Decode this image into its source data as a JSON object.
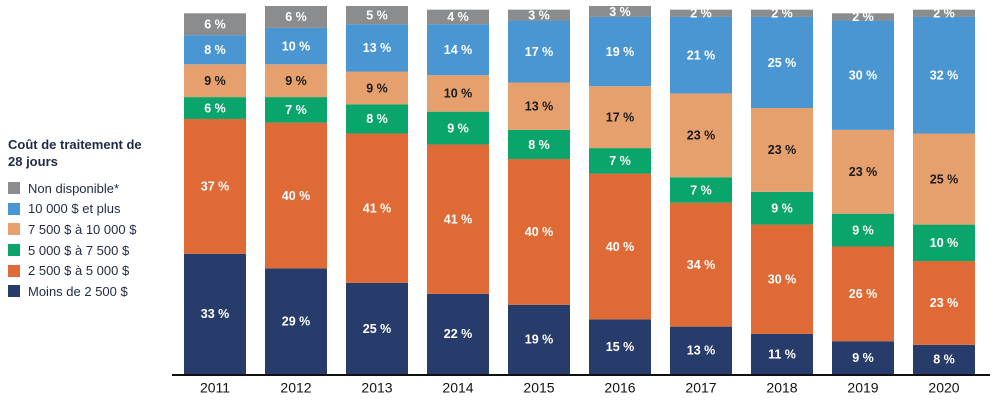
{
  "chart_data": {
    "type": "stacked-bar",
    "legend_title": "Coût de traitement de 28 jours",
    "categories": [
      "2011",
      "2012",
      "2013",
      "2014",
      "2015",
      "2016",
      "2017",
      "2018",
      "2019",
      "2020"
    ],
    "series": [
      {
        "name": "Moins de 2 500 $",
        "color": "#283c6b",
        "values": [
          33,
          29,
          25,
          22,
          19,
          15,
          13,
          11,
          9,
          8
        ],
        "value_labels": [
          "33 %",
          "29 %",
          "25 %",
          "22 %",
          "19 %",
          "15 %",
          "13 %",
          "11 %",
          "9 %",
          "8 %"
        ]
      },
      {
        "name": "2 500 $ à 5 000 $",
        "color": "#e06a35",
        "values": [
          37,
          40,
          41,
          41,
          40,
          40,
          34,
          30,
          26,
          23
        ],
        "value_labels": [
          "37 %",
          "40 %",
          "41 %",
          "41 %",
          "40 %",
          "40 %",
          "34 %",
          "30 %",
          "26 %",
          "23 %"
        ]
      },
      {
        "name": "5 000 $ à 7 500 $",
        "color": "#0aa56b",
        "values": [
          6,
          7,
          8,
          9,
          8,
          7,
          7,
          9,
          9,
          10
        ],
        "value_labels": [
          "6 %",
          "7 %",
          "8 %",
          "9 %",
          "8 %",
          "7 %",
          "7 %",
          "9 %",
          "9 %",
          "10 %"
        ]
      },
      {
        "name": "7 500 $ à 10 000 $",
        "color": "#e6a06d",
        "values": [
          9,
          9,
          9,
          10,
          13,
          17,
          23,
          23,
          23,
          25
        ],
        "value_labels": [
          "9 %",
          "9 %",
          "9 %",
          "10 %",
          "13 %",
          "17 %",
          "23 %",
          "23 %",
          "23 %",
          "25 %"
        ]
      },
      {
        "name": "10 000 $ et plus",
        "color": "#4a96d2",
        "values": [
          8,
          10,
          13,
          14,
          17,
          19,
          21,
          25,
          30,
          32
        ],
        "value_labels": [
          "8 %",
          "10 %",
          "13 %",
          "14 %",
          "17 %",
          "19 %",
          "21 %",
          "25 %",
          "30 %",
          "32 %"
        ]
      },
      {
        "name": "Non disponible*",
        "color": "#8a8c8e",
        "values": [
          6,
          6,
          5,
          4,
          3,
          3,
          2,
          2,
          2,
          2
        ],
        "value_labels": [
          "6 %",
          "6 %",
          "5 %",
          "4 %",
          "3 %",
          "3 %",
          "2 %",
          "2 %",
          "2 %",
          "2 %"
        ]
      }
    ]
  }
}
